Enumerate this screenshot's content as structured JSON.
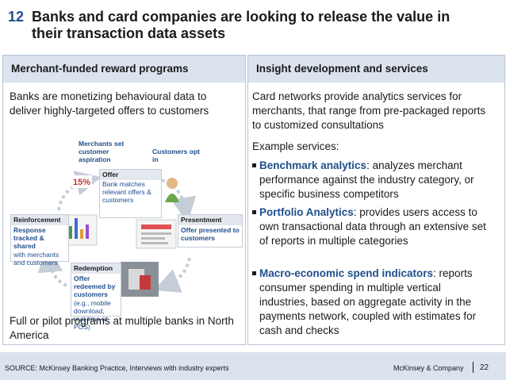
{
  "slide": {
    "number": "12",
    "title": "Banks and card companies are looking to release the value in their transaction data assets"
  },
  "left": {
    "header": "Merchant-funded reward programs",
    "intro": "Banks are monetizing behavioural data to deliver highly-targeted offers to customers",
    "diagram": {
      "label_merchants": "Merchants set customer aspiration",
      "label_customers": "Customers opt in",
      "offer": {
        "title": "Offer",
        "text": "Bank matches relevant offers & customers"
      },
      "reinforcement": {
        "title": "Reinforcement",
        "text": "Response tracked & shared",
        "subtext": "with merchants and customers"
      },
      "presentment": {
        "title": "Presentment",
        "text": "Offer presented to customers"
      },
      "redemption": {
        "title": "Redemption",
        "text": "Offer redeemed by customers",
        "subtext": "(e.g., mobile download, real-time at POS)"
      },
      "discount_text": "15%"
    },
    "outro": "Full or pilot programs at multiple banks in North America"
  },
  "right": {
    "header": "Insight development and services",
    "intro": "Card networks provide analytics services for merchants, that range from pre-packaged reports to customized consultations",
    "example_label": "Example services:",
    "bullets": [
      {
        "bold": "Benchmark analytics",
        "rest": ": analyzes merchant performance against the industry category, or specific business competitors"
      },
      {
        "bold": "Portfolio Analytics",
        "rest": ": provides users access to own transactional data through an extensive set of reports in multiple categories"
      },
      {
        "bold": "Macro-economic spend indicators",
        "rest": ": reports consumer spending in multiple vertical industries, based on aggregate activity in the payments network, coupled with estimates for cash and checks"
      }
    ]
  },
  "footer": {
    "source": "SOURCE: McKinsey Banking Practice, Interviews with industry experts",
    "company": "McKinsey & Company",
    "page": "22"
  }
}
